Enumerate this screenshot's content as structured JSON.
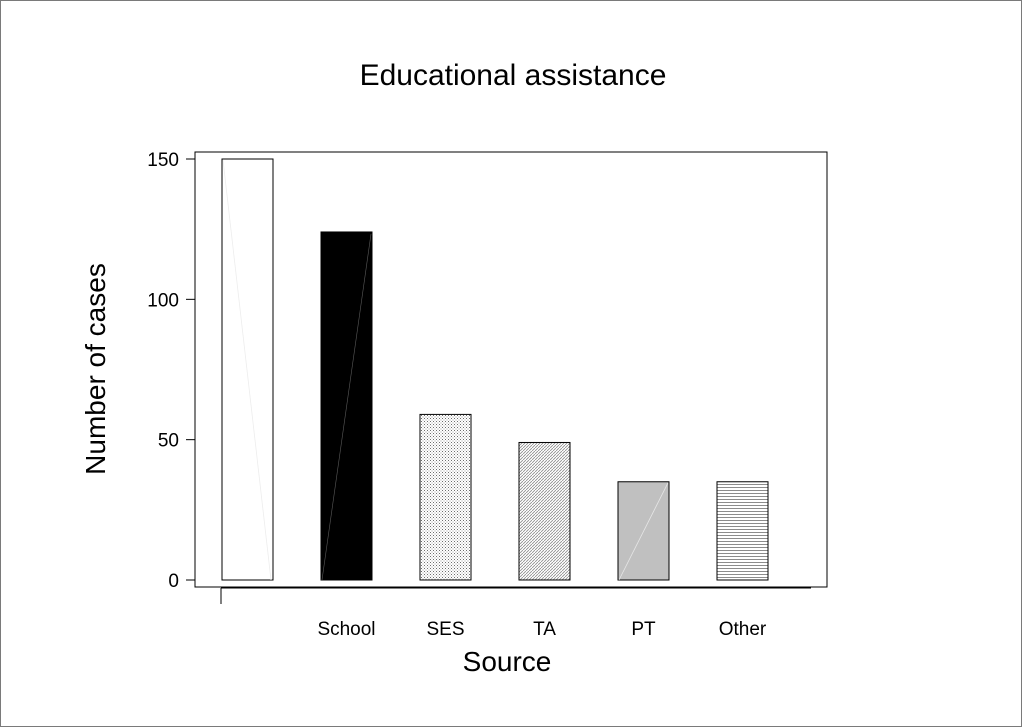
{
  "chart_data": {
    "type": "bar",
    "title": "Educational assistance",
    "xlabel": "Source",
    "ylabel": "Number of cases",
    "categories": [
      "",
      "School",
      "SES",
      "TA",
      "PT",
      "Other"
    ],
    "values": [
      150,
      124,
      59,
      49,
      35,
      35
    ],
    "ylim": [
      0,
      150
    ],
    "yticks": [
      0,
      50,
      100,
      150
    ],
    "grid": false,
    "legend": "none",
    "bar_fills": [
      "white",
      "black",
      "dots",
      "diag",
      "lightgray",
      "hlines"
    ],
    "colors": {
      "black": "#000000",
      "light_gray": "#c0c0c0",
      "pattern_gray": "#8c8c8c",
      "frame_border": "#7a7a7a"
    }
  }
}
